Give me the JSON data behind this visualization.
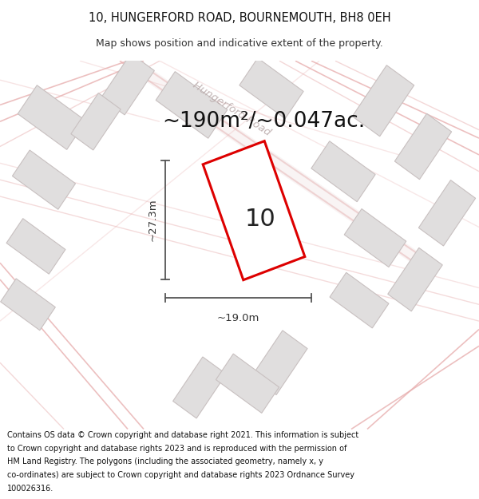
{
  "title_line1": "10, HUNGERFORD ROAD, BOURNEMOUTH, BH8 0EH",
  "title_line2": "Map shows position and indicative extent of the property.",
  "area_text": "~190m²/~0.047ac.",
  "plot_label": "10",
  "dim_height": "~27.3m",
  "dim_width": "~19.0m",
  "footer_lines": [
    "Contains OS data © Crown copyright and database right 2021. This information is subject",
    "to Crown copyright and database rights 2023 and is reproduced with the permission of",
    "HM Land Registry. The polygons (including the associated geometry, namely x, y",
    "co-ordinates) are subject to Crown copyright and database rights 2023 Ordnance Survey",
    "100026316."
  ],
  "map_bg": "#f7f5f5",
  "road_color": "#e8b0b0",
  "building_fill": "#e0dede",
  "building_edge": "#c8c0c0",
  "plot_edge": "#dd0000",
  "plot_fill": "none",
  "annotation_color": "#444444",
  "title_color": "#111111",
  "subtitle_color": "#333333",
  "area_color": "#111111",
  "road_label_color": "#b8a8a8",
  "hungerford_road_color": "#d4a8a8"
}
